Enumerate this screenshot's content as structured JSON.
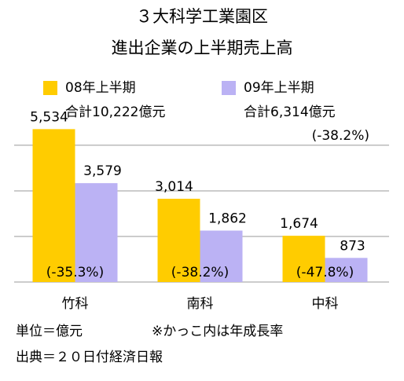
{
  "chart_data": {
    "type": "bar",
    "title": "３大科学工業園区",
    "subtitle": "進出企業の上半期売上高",
    "categories": [
      "竹科",
      "南科",
      "中科"
    ],
    "series": [
      {
        "name": "08年上半期",
        "color": "#ffcc00",
        "values": [
          5534,
          3014,
          1674
        ],
        "value_labels": [
          "5,534",
          "3,014",
          "1,674"
        ]
      },
      {
        "name": "09年上半期",
        "color": "#bbb2f4",
        "values": [
          3579,
          1862,
          873
        ],
        "value_labels": [
          "3,579",
          "1,862",
          "873"
        ]
      }
    ],
    "legend_notes": [
      "合計10,222億元",
      "合計6,314億元"
    ],
    "legend_change": "(-38.2%)",
    "change_labels": [
      "(-35.3%)",
      "(-38.2%)",
      "(-47.8%)"
    ],
    "ylim": [
      0,
      6000
    ],
    "yticks": [
      0,
      1650,
      3300,
      4950
    ],
    "grid": true,
    "notes": [
      "単位＝億元",
      "※かっこ内は年成長率",
      "出典＝２０日付経済日報"
    ]
  }
}
